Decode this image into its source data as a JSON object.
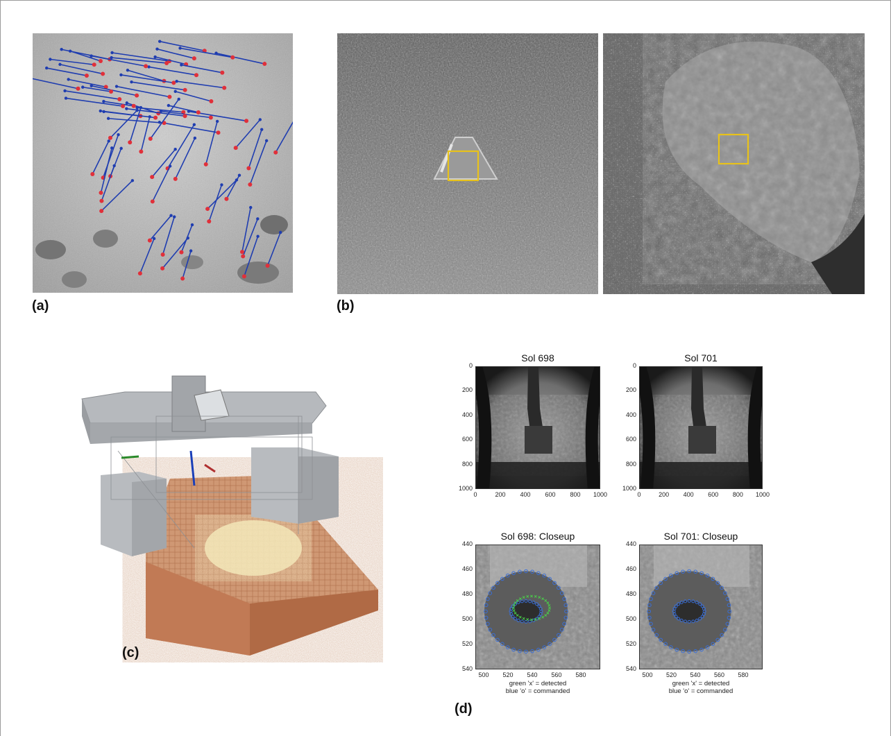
{
  "panel_labels": {
    "a": "(a)",
    "b": "(b)",
    "c": "(c)",
    "d": "(d)"
  },
  "panel_d": {
    "plots": [
      {
        "title": "Sol 698",
        "yticks": [
          "0",
          "200",
          "400",
          "600",
          "800",
          "1000"
        ],
        "xticks": [
          "0",
          "200",
          "400",
          "600",
          "800",
          "1000"
        ]
      },
      {
        "title": "Sol 701",
        "yticks": [
          "0",
          "200",
          "400",
          "600",
          "800",
          "1000"
        ],
        "xticks": [
          "0",
          "200",
          "400",
          "600",
          "800",
          "1000"
        ]
      },
      {
        "title": "Sol 698: Closeup",
        "yticks": [
          "440",
          "460",
          "480",
          "500",
          "520",
          "540"
        ],
        "xticks": [
          "500",
          "520",
          "540",
          "560",
          "580"
        ],
        "caption1": "green 'x' = detected",
        "caption2": "blue 'o' = commanded"
      },
      {
        "title": "Sol 701: Closeup",
        "yticks": [
          "440",
          "460",
          "480",
          "500",
          "520",
          "540"
        ],
        "xticks": [
          "500",
          "520",
          "540",
          "560",
          "580"
        ],
        "caption1": "green 'x' = detected",
        "caption2": "blue 'o' = commanded"
      }
    ]
  },
  "colors": {
    "track_line": "#1f3db0",
    "track_point": "#e0303a",
    "roi_box": "#e8c21a",
    "soil": "#c8764a"
  }
}
